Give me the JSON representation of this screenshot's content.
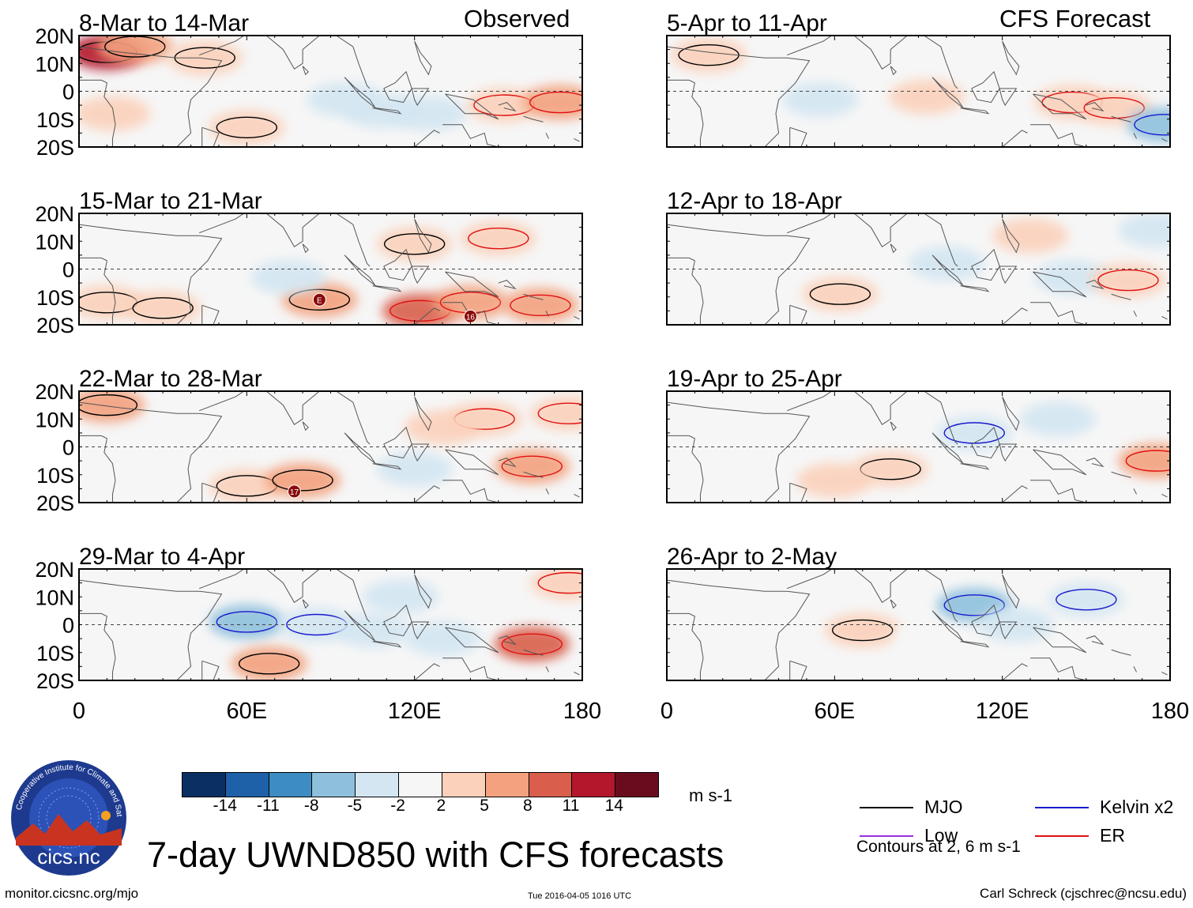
{
  "header": {
    "observed_label": "Observed",
    "forecast_label": "CFS Forecast"
  },
  "panels": {
    "observed": [
      {
        "period": "8-Mar to 14-Mar"
      },
      {
        "period": "15-Mar to 21-Mar"
      },
      {
        "period": "22-Mar to 28-Mar"
      },
      {
        "period": "29-Mar to 4-Apr"
      }
    ],
    "forecast": [
      {
        "period": "5-Apr to 11-Apr"
      },
      {
        "period": "12-Apr to 18-Apr"
      },
      {
        "period": "19-Apr to 25-Apr"
      },
      {
        "period": "26-Apr to 2-May"
      }
    ]
  },
  "chart_data": {
    "type": "heatmap",
    "title": "7-day UWND850 with CFS forecasts",
    "variable": "850-hPa zonal wind anomaly",
    "units": "m s-1",
    "x_axis": {
      "ticks": [
        "0",
        "60E",
        "120E",
        "180"
      ],
      "range": [
        0,
        180
      ]
    },
    "y_axis": {
      "ticks": [
        "20N",
        "10N",
        "0",
        "10S",
        "20S"
      ],
      "range": [
        -20,
        20
      ]
    },
    "colorbar": {
      "tick_labels": [
        "-14",
        "-11",
        "-8",
        "-5",
        "-2",
        "2",
        "5",
        "8",
        "11",
        "14"
      ],
      "colors": [
        "#0a2f63",
        "#1f61a9",
        "#3d8dc2",
        "#8ec0dd",
        "#d3e6f2",
        "#f6f6f6",
        "#fbd1bb",
        "#f3a17e",
        "#d95f4c",
        "#b3172c",
        "#6a0c1e"
      ]
    },
    "contour_note": "Contours at 2, 6 m s-1",
    "legend": [
      {
        "name": "MJO",
        "color": "#000000"
      },
      {
        "name": "Low",
        "color": "#9a2fe0"
      },
      {
        "name": "Kelvin x2",
        "color": "#1a1acc"
      },
      {
        "name": "ER",
        "color": "#e01010"
      }
    ],
    "storm_markers": [
      {
        "panel": "15-Mar to 21-Mar",
        "label": "E",
        "lon": 86,
        "lat": -11
      },
      {
        "panel": "15-Mar to 21-Mar",
        "label": "16",
        "lon": 140,
        "lat": -17
      },
      {
        "panel": "22-Mar to 28-Mar",
        "label": "17",
        "lon": 77,
        "lat": -16
      }
    ],
    "series": [
      {
        "panel": "8-Mar to 14-Mar",
        "source": "Observed",
        "anomalies": [
          [
            10,
            14,
            12
          ],
          [
            20,
            16,
            8
          ],
          [
            45,
            12,
            5
          ],
          [
            60,
            -13,
            5
          ],
          [
            95,
            -3,
            -2
          ],
          [
            108,
            -7,
            -3
          ],
          [
            125,
            -8,
            -3
          ],
          [
            152,
            -5,
            5
          ],
          [
            172,
            -4,
            6
          ],
          [
            12,
            -8,
            3
          ]
        ]
      },
      {
        "panel": "15-Mar to 21-Mar",
        "source": "Observed",
        "anomalies": [
          [
            10,
            -12,
            5
          ],
          [
            30,
            -14,
            4
          ],
          [
            86,
            -11,
            8
          ],
          [
            122,
            -15,
            9
          ],
          [
            140,
            -12,
            8
          ],
          [
            165,
            -13,
            6
          ],
          [
            120,
            9,
            4
          ],
          [
            150,
            11,
            4
          ],
          [
            80,
            5,
            2
          ],
          [
            75,
            -3,
            -2
          ]
        ]
      },
      {
        "panel": "22-Mar to 28-Mar",
        "source": "Observed",
        "anomalies": [
          [
            10,
            15,
            6
          ],
          [
            60,
            -14,
            5
          ],
          [
            80,
            -12,
            6
          ],
          [
            162,
            -7,
            8
          ],
          [
            145,
            10,
            4
          ],
          [
            175,
            12,
            5
          ],
          [
            130,
            7,
            3
          ],
          [
            120,
            -8,
            -3
          ]
        ]
      },
      {
        "panel": "29-Mar to 4-Apr",
        "source": "Observed",
        "anomalies": [
          [
            60,
            1,
            -5
          ],
          [
            85,
            0,
            -4
          ],
          [
            105,
            -2,
            -3
          ],
          [
            130,
            -5,
            -3
          ],
          [
            68,
            -14,
            8
          ],
          [
            162,
            -7,
            9
          ],
          [
            175,
            15,
            5
          ],
          [
            115,
            10,
            -2
          ]
        ]
      },
      {
        "panel": "5-Apr to 11-Apr",
        "source": "CFS Forecast",
        "anomalies": [
          [
            15,
            13,
            5
          ],
          [
            145,
            -4,
            4
          ],
          [
            160,
            -6,
            5
          ],
          [
            178,
            -12,
            -5
          ],
          [
            55,
            -3,
            -3
          ],
          [
            93,
            -2,
            3
          ]
        ]
      },
      {
        "panel": "12-Apr to 18-Apr",
        "source": "CFS Forecast",
        "anomalies": [
          [
            62,
            -9,
            5
          ],
          [
            100,
            2,
            -3
          ],
          [
            145,
            -3,
            -2
          ],
          [
            165,
            -4,
            5
          ],
          [
            130,
            12,
            3
          ],
          [
            175,
            14,
            -2
          ]
        ]
      },
      {
        "panel": "19-Apr to 25-Apr",
        "source": "CFS Forecast",
        "anomalies": [
          [
            80,
            -8,
            4
          ],
          [
            110,
            5,
            -4
          ],
          [
            140,
            10,
            -3
          ],
          [
            175,
            -5,
            6
          ],
          [
            60,
            -12,
            3
          ]
        ]
      },
      {
        "panel": "26-Apr to 2-May",
        "source": "CFS Forecast",
        "anomalies": [
          [
            70,
            -2,
            4
          ],
          [
            95,
            -5,
            2
          ],
          [
            110,
            7,
            -5
          ],
          [
            150,
            9,
            -4
          ],
          [
            125,
            0,
            -2
          ]
        ]
      }
    ]
  },
  "footer": {
    "url": "monitor.cicsnc.org/mjo",
    "timestamp": "Tue 2016-04-05 1016 UTC",
    "author": "Carl Schreck (cjschrec@ncsu.edu)"
  },
  "logo": {
    "name": "cics.nc",
    "ring_text": "Cooperative Institute for Climate and Satellites"
  }
}
